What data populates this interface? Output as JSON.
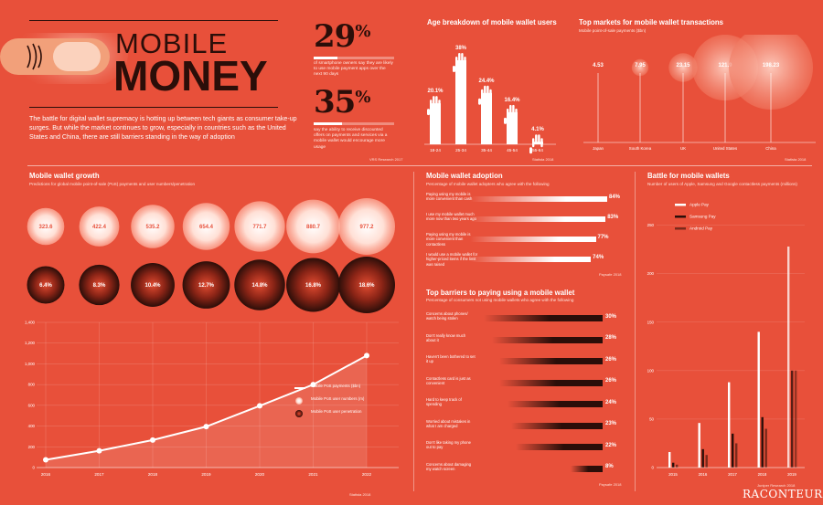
{
  "header": {
    "title_line1": "MOBILE",
    "title_line2": "MONEY",
    "intro": "The battle for digital wallet supremacy is hotting up between tech giants as consumer take-up surges. But while the market continues to grow, especially in countries such as the United States and China, there are still barriers standing in the way of adoption"
  },
  "stats": [
    {
      "value": "29",
      "unit": "%",
      "fill": 0.29,
      "desc": "of smartphone owners say they are likely to use mobile payment apps over the next 90 days"
    },
    {
      "value": "35",
      "unit": "%",
      "fill": 0.35,
      "desc": "say the ability to receive discounted offers on payments and services via a mobile wallet would encourage more usage"
    }
  ],
  "stats_source": "VRS Research 2017",
  "age": {
    "title": "Age breakdown of mobile wallet users",
    "source": "Statista 2018",
    "groups": [
      {
        "label": "18-24",
        "value": 20.1,
        "text": "20.1%"
      },
      {
        "label": "25-34",
        "value": 38.0,
        "text": "38%"
      },
      {
        "label": "35-44",
        "value": 24.4,
        "text": "24.4%"
      },
      {
        "label": "45-54",
        "value": 16.4,
        "text": "16.4%"
      },
      {
        "label": "55-64",
        "value": 4.1,
        "text": "4.1%"
      }
    ]
  },
  "markets": {
    "title": "Top markets for mobile wallet transactions",
    "subtitle": "Mobile point-of-sale payments ($bn)",
    "source": "Statista 2018",
    "items": [
      {
        "label": "Japan",
        "value": 4.53,
        "text": "4.53"
      },
      {
        "label": "South Korea",
        "value": 7.95,
        "text": "7.95"
      },
      {
        "label": "UK",
        "value": 23.15,
        "text": "23.15"
      },
      {
        "label": "United States",
        "value": 121.9,
        "text": "121.9"
      },
      {
        "label": "China",
        "value": 198.23,
        "text": "198.23"
      }
    ]
  },
  "growth": {
    "title": "Mobile wallet growth",
    "subtitle": "Predictions for global mobile point-of-sale (PoS) payments and user numbers/penetration",
    "source": "Statista 2018",
    "years": [
      "2016",
      "2017",
      "2018",
      "2019",
      "2020",
      "2021",
      "2022"
    ],
    "payments": [
      75,
      162,
      265,
      395,
      595,
      800,
      1080
    ],
    "users": [
      "323.6",
      "422.4",
      "535.2",
      "654.4",
      "771.7",
      "880.7",
      "977.2"
    ],
    "users_values": [
      323.6,
      422.4,
      535.2,
      654.4,
      771.7,
      880.7,
      977.2
    ],
    "penetration": [
      "6.4%",
      "8.3%",
      "10.4%",
      "12.7%",
      "14.8%",
      "16.8%",
      "18.6%"
    ],
    "penetration_values": [
      6.4,
      8.3,
      10.4,
      12.7,
      14.8,
      16.8,
      18.6
    ],
    "yticks": [
      "0",
      "200",
      "400",
      "600",
      "800",
      "1,000",
      "1,200",
      "1,400"
    ],
    "ylim": [
      0,
      1400
    ],
    "legend": [
      {
        "label": "Mobile PoS payments ($bn)"
      },
      {
        "label": "Mobile PoS user numbers (m)"
      },
      {
        "label": "Mobile PoS user penetration"
      }
    ]
  },
  "adoption": {
    "title": "Mobile wallet adoption",
    "subtitle": "Percentage of mobile wallet adopters who agree with the following",
    "source": "Paysafe 2018",
    "items": [
      {
        "label": "Paying using my mobile is more convenient than cash",
        "value": 84,
        "text": "84%"
      },
      {
        "label": "I use my mobile wallet much more now than two years ago",
        "value": 83,
        "text": "83%"
      },
      {
        "label": "Paying using my mobile is more convenient than contactless",
        "value": 77,
        "text": "77%"
      },
      {
        "label": "I would use a mobile wallet for higher-priced items if the limit was raised",
        "value": 74,
        "text": "74%"
      }
    ]
  },
  "barriers": {
    "title": "Top barriers to paying using a mobile wallet",
    "subtitle": "Percentage of consumers not using mobile wallets who agree with the following",
    "source": "Paysafe 2018",
    "items": [
      {
        "label": "Concerns about phones/ watch being stolen",
        "value": 30,
        "text": "30%"
      },
      {
        "label": "Don't really know much about it",
        "value": 28,
        "text": "28%"
      },
      {
        "label": "Haven't been bothered to set it up",
        "value": 26,
        "text": "26%"
      },
      {
        "label": "Contactless card is just as convenient",
        "value": 26,
        "text": "26%"
      },
      {
        "label": "Hard to keep track of spending",
        "value": 24,
        "text": "24%"
      },
      {
        "label": "Worried about mistakes in what I am charged",
        "value": 23,
        "text": "23%"
      },
      {
        "label": "Don't like taking my phone out to pay",
        "value": 22,
        "text": "22%"
      },
      {
        "label": "Concerns about damaging my watch screen",
        "value": 8,
        "text": "8%"
      }
    ]
  },
  "battle": {
    "title": "Battle for mobile wallets",
    "subtitle": "Number of users of Apple, Samsung and Google contactless payments (millions)",
    "source": "Juniper Research 2018",
    "years": [
      "2015",
      "2016",
      "2017",
      "2018",
      "2019"
    ],
    "yticks": [
      "0",
      "50",
      "100",
      "150",
      "200",
      "250"
    ],
    "ylim": [
      0,
      260
    ],
    "series": [
      {
        "name": "Apple Pay",
        "values": [
          16,
          46,
          88,
          140,
          228
        ]
      },
      {
        "name": "Samsung Pay",
        "values": [
          5,
          19,
          35,
          52,
          100
        ]
      },
      {
        "name": "Android Pay",
        "values": [
          3,
          13,
          25,
          40,
          100
        ]
      }
    ]
  },
  "brand": "RACONTEUR",
  "colors": {
    "background": "#e8503a",
    "dark": "#2b0e09",
    "light": "#ffffff"
  }
}
